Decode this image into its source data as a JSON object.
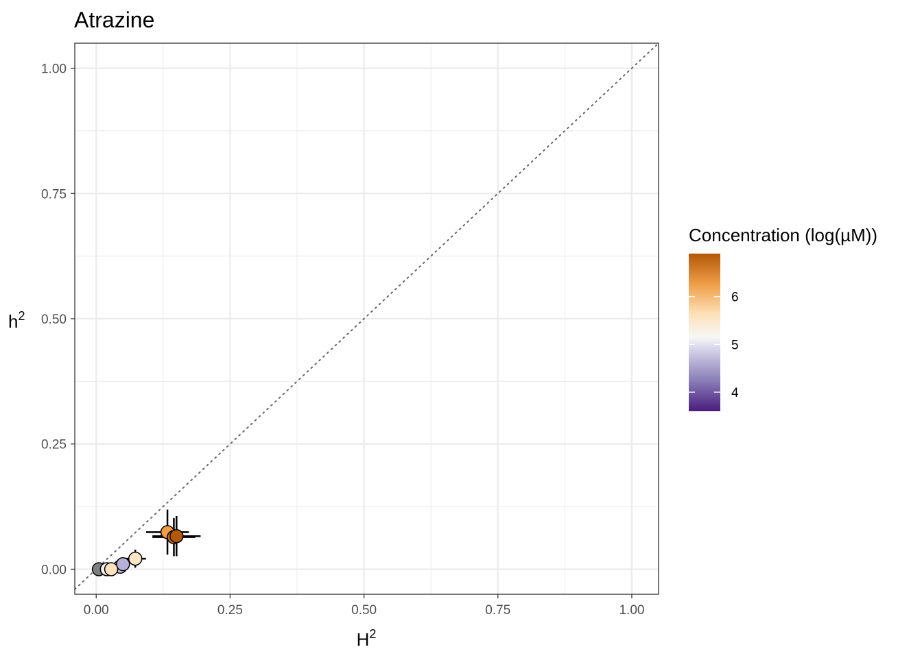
{
  "chart_data": {
    "type": "scatter",
    "title": "Atrazine",
    "xlabel": "H",
    "xlabel_superscript": "2",
    "ylabel": "h",
    "ylabel_superscript": "2",
    "xlim": [
      -0.04,
      1.05
    ],
    "ylim": [
      -0.05,
      1.05
    ],
    "x_ticks": [
      0.0,
      0.25,
      0.5,
      0.75,
      1.0
    ],
    "y_ticks": [
      0.0,
      0.25,
      0.5,
      0.75,
      1.0
    ],
    "x_tick_labels": [
      "0.00",
      "0.25",
      "0.50",
      "0.75",
      "1.00"
    ],
    "y_tick_labels": [
      "0.00",
      "0.25",
      "0.50",
      "0.75",
      "1.00"
    ],
    "grid": true,
    "reference_line": {
      "type": "identity",
      "style": "dotted",
      "color": "#666666"
    },
    "legend": {
      "title": "Concentration (log(µM))",
      "placement": "right",
      "type": "colorbar",
      "range": [
        3.6,
        6.9
      ],
      "breaks": [
        4,
        5,
        6
      ],
      "break_labels": [
        "4",
        "5",
        "6"
      ],
      "colors": [
        "#4b1c7e",
        "#b2abd2",
        "#f7f7f7",
        "#fdd9a5",
        "#f0a04b",
        "#b35806"
      ]
    },
    "points": [
      {
        "x": 0.005,
        "y": 0.0,
        "x_err": 0.0,
        "y_err": 0.0,
        "color": "#7f7f7f"
      },
      {
        "x": 0.02,
        "y": 0.0,
        "x_err": 0.0,
        "y_err": 0.0,
        "color": "#f2f1f4"
      },
      {
        "x": 0.045,
        "y": 0.005,
        "x_err": 0.0,
        "y_err": 0.0,
        "color": "#c9c5e0"
      },
      {
        "x": 0.05,
        "y": 0.01,
        "x_err": 0.0,
        "y_err": 0.0,
        "color": "#b5b0d6"
      },
      {
        "x": 0.028,
        "y": 0.0,
        "x_err": 0.0,
        "y_err": 0.0,
        "color": "#fde2bd"
      },
      {
        "x": 0.073,
        "y": 0.021,
        "x_err": 0.02,
        "y_err": 0.018,
        "color": "#fde5c6"
      },
      {
        "x": 0.133,
        "y": 0.074,
        "x_err": 0.04,
        "y_err": 0.045,
        "color": "#f19d48"
      },
      {
        "x": 0.145,
        "y": 0.064,
        "x_err": 0.04,
        "y_err": 0.038,
        "color": "#d27220"
      },
      {
        "x": 0.15,
        "y": 0.066,
        "x_err": 0.045,
        "y_err": 0.04,
        "color": "#b35806"
      }
    ]
  }
}
